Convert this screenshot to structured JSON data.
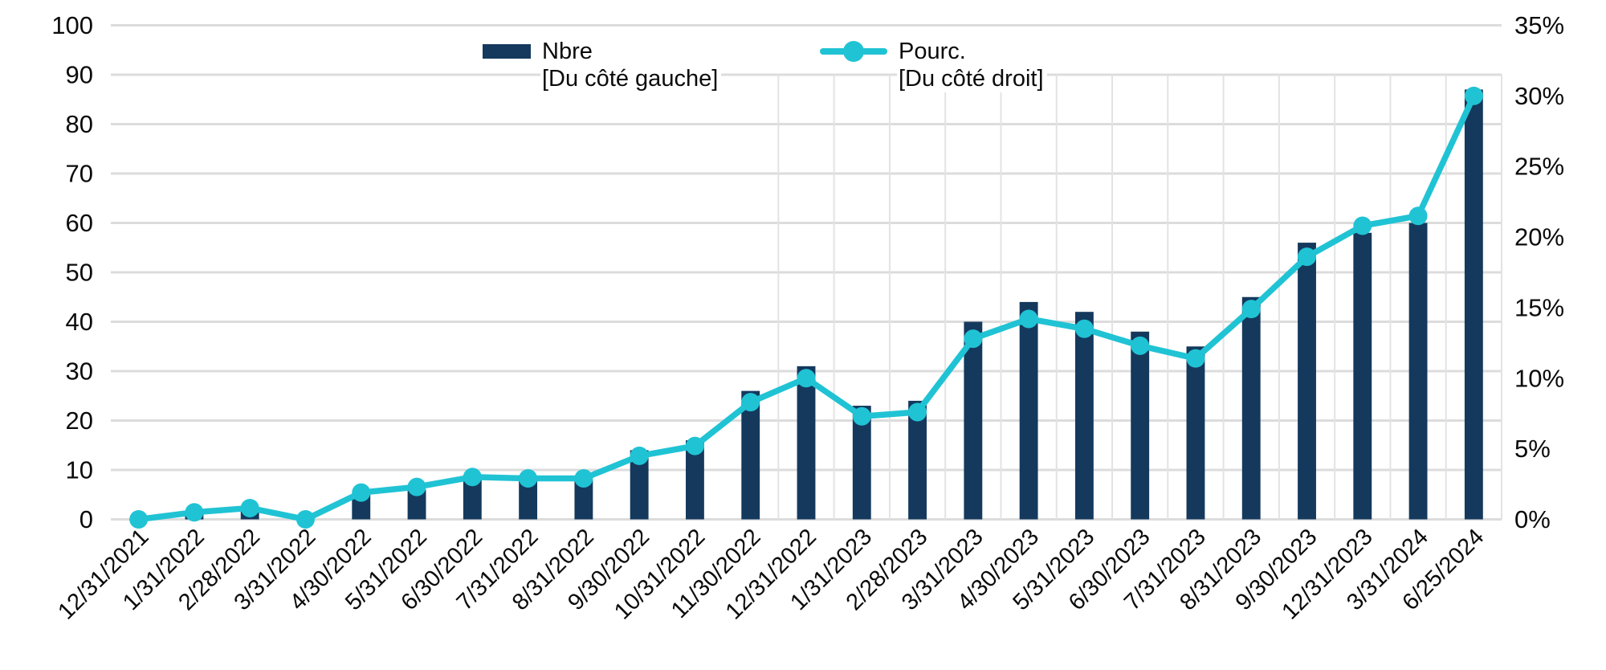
{
  "chart_data": {
    "type": "combo",
    "categories": [
      "12/31/2021",
      "1/31/2022",
      "2/28/2022",
      "3/31/2022",
      "4/30/2022",
      "5/31/2022",
      "6/30/2022",
      "7/31/2022",
      "8/31/2022",
      "9/30/2022",
      "10/31/2022",
      "11/30/2022",
      "12/31/2022",
      "1/31/2023",
      "2/28/2023",
      "3/31/2023",
      "4/30/2023",
      "5/31/2023",
      "6/30/2023",
      "7/31/2023",
      "8/31/2023",
      "9/30/2023",
      "12/31/2023",
      "3/31/2024",
      "6/25/2024"
    ],
    "series": [
      {
        "name": "Nbre",
        "type": "bar",
        "axis": "left",
        "color": "#14395d",
        "values": [
          0,
          1,
          2,
          0,
          5,
          6,
          9,
          8,
          8,
          14,
          16,
          26,
          31,
          23,
          24,
          40,
          44,
          42,
          38,
          35,
          45,
          56,
          58,
          60,
          87
        ]
      },
      {
        "name": "Pourc.",
        "type": "line",
        "axis": "right",
        "color": "#20c3d4",
        "values": [
          0,
          0.5,
          0.8,
          0,
          1.9,
          2.3,
          3.0,
          2.9,
          2.9,
          4.5,
          5.2,
          8.3,
          10.0,
          7.3,
          7.6,
          12.8,
          14.2,
          13.5,
          12.3,
          11.4,
          14.9,
          18.6,
          20.8,
          21.5,
          30.0
        ]
      }
    ],
    "left_axis": {
      "min": 0,
      "max": 100,
      "step": 10,
      "tick_labels": [
        "100",
        "90",
        "80",
        "70",
        "60",
        "50",
        "40",
        "30",
        "20",
        "10",
        "0"
      ]
    },
    "right_axis": {
      "min": 0,
      "max": 35,
      "step": 5,
      "tick_labels": [
        "35%",
        "30%",
        "25%",
        "20%",
        "15%",
        "10%",
        "5%",
        "0%"
      ]
    },
    "legend": [
      {
        "label": "Nbre",
        "sublabel": "[Du côté gauche]",
        "marker": "bar-swatch",
        "color": "#14395d"
      },
      {
        "label": "Pourc.",
        "sublabel": "[Du côté droit]",
        "marker": "line-marker",
        "color": "#20c3d4"
      }
    ],
    "grid": {
      "horizontal": "on",
      "vertical": "partial-right",
      "color": "#dcdcdc"
    },
    "colors": {
      "bar": "#14395d",
      "line": "#20c3d4",
      "gridline": "#dcdcdc",
      "text": "#0b0b0b",
      "background": "#ffffff"
    },
    "title": "",
    "xlabel": "",
    "ylabel": ""
  }
}
